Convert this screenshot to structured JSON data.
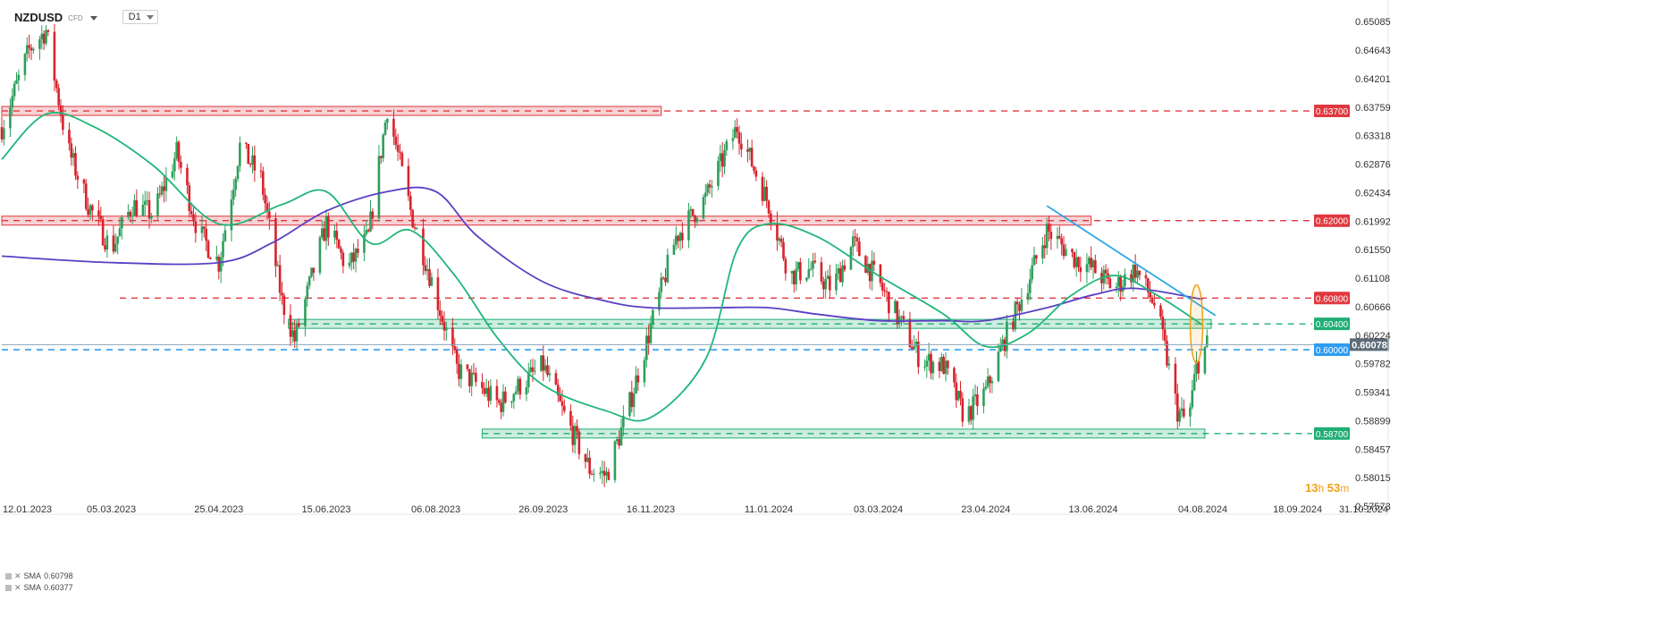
{
  "header": {
    "symbol": "NZDUSD",
    "instrument_type": "CFD",
    "timeframe": "D1"
  },
  "legend": [
    {
      "label": "SMA",
      "value": "0.60798"
    },
    {
      "label": "SMA",
      "value": "0.60377"
    }
  ],
  "timer": {
    "hours": "13",
    "hours_unit": "h",
    "minutes": "53",
    "minutes_unit": "m"
  },
  "colors": {
    "up_candle": "#2e9e5b",
    "down_candle": "#d7232c",
    "sma_fast": "#1fb67a",
    "sma_slow": "#5b3fc4",
    "resistance": "#e0383f",
    "support": "#1fae74",
    "pivot": "#2e9df2",
    "trendline": "#29a8e8",
    "highlight": "#f0a018"
  },
  "chart_data": {
    "type": "candlestick",
    "title": "",
    "xlabel": "",
    "ylabel": "",
    "ylim": [
      0.5745,
      0.6535
    ],
    "grid": false,
    "x_ticks": [
      "12.01.2023",
      "05.03.2023",
      "25.04.2023",
      "15.06.2023",
      "06.08.2023",
      "26.09.2023",
      "16.11.2023",
      "11.01.2024",
      "03.03.2024",
      "23.04.2024",
      "13.06.2024",
      "04.08.2024",
      "18.09.2024",
      "31.10.2024"
    ],
    "y_ticks": [
      "0.65085",
      "0.64643",
      "0.64201",
      "0.63759",
      "0.63318",
      "0.62876",
      "0.62434",
      "0.61992",
      "0.61550",
      "0.61108",
      "0.60666",
      "0.60224",
      "0.59782",
      "0.59341",
      "0.58899",
      "0.58457",
      "0.58015",
      "0.57573"
    ],
    "current_price": {
      "label": "0.60078",
      "value": 0.60078
    },
    "levels": [
      {
        "label": "0.63700",
        "value": 0.637,
        "kind": "resistance"
      },
      {
        "label": "0.62000",
        "value": 0.62,
        "kind": "resistance"
      },
      {
        "label": "0.60800",
        "value": 0.608,
        "kind": "resistance"
      },
      {
        "label": "0.60400",
        "value": 0.604,
        "kind": "support"
      },
      {
        "label": "0.60000",
        "value": 0.6,
        "kind": "pivot"
      },
      {
        "label": "0.58700",
        "value": 0.587,
        "kind": "support"
      }
    ],
    "zones": [
      {
        "kind": "resistance",
        "center": 0.637,
        "x_start": "12.01.2023",
        "x_end": "21.11.2023"
      },
      {
        "kind": "resistance",
        "center": 0.62,
        "x_start": "12.01.2023",
        "x_end": "12.06.2024"
      },
      {
        "kind": "support",
        "center": 0.604,
        "x_start": "28.05.2023",
        "x_end": "08.08.2024"
      },
      {
        "kind": "support",
        "center": 0.587,
        "x_start": "28.08.2023",
        "x_end": "05.08.2024"
      }
    ],
    "trendline": {
      "from": {
        "date": "22.05.2024",
        "value": 0.6223
      },
      "to": {
        "date": "10.08.2024",
        "value": 0.6053
      }
    },
    "highlight": {
      "date": "01.08.2024",
      "low": 0.5985,
      "high": 0.6095
    },
    "close_path": [
      {
        "date": "12.01.2023",
        "value": 0.6345
      },
      {
        "date": "25.01.2023",
        "value": 0.6465
      },
      {
        "date": "02.02.2023",
        "value": 0.6495
      },
      {
        "date": "12.02.2023",
        "value": 0.6315
      },
      {
        "date": "22.02.2023",
        "value": 0.6225
      },
      {
        "date": "05.03.2023",
        "value": 0.6155
      },
      {
        "date": "15.03.2023",
        "value": 0.6225
      },
      {
        "date": "25.03.2023",
        "value": 0.621
      },
      {
        "date": "05.04.2023",
        "value": 0.6305
      },
      {
        "date": "15.04.2023",
        "value": 0.6185
      },
      {
        "date": "25.04.2023",
        "value": 0.6135
      },
      {
        "date": "05.05.2023",
        "value": 0.6315
      },
      {
        "date": "15.05.2023",
        "value": 0.6265
      },
      {
        "date": "25.05.2023",
        "value": 0.6075
      },
      {
        "date": "31.05.2023",
        "value": 0.6015
      },
      {
        "date": "15.06.2023",
        "value": 0.6195
      },
      {
        "date": "25.06.2023",
        "value": 0.6125
      },
      {
        "date": "05.07.2023",
        "value": 0.6175
      },
      {
        "date": "14.07.2023",
        "value": 0.6375
      },
      {
        "date": "25.07.2023",
        "value": 0.6215
      },
      {
        "date": "06.08.2023",
        "value": 0.6085
      },
      {
        "date": "16.08.2023",
        "value": 0.597
      },
      {
        "date": "26.08.2023",
        "value": 0.5945
      },
      {
        "date": "05.09.2023",
        "value": 0.5915
      },
      {
        "date": "15.09.2023",
        "value": 0.5945
      },
      {
        "date": "26.09.2023",
        "value": 0.5975
      },
      {
        "date": "05.10.2023",
        "value": 0.5905
      },
      {
        "date": "18.10.2023",
        "value": 0.5815
      },
      {
        "date": "26.10.2023",
        "value": 0.5805
      },
      {
        "date": "05.11.2023",
        "value": 0.5905
      },
      {
        "date": "16.11.2023",
        "value": 0.6035
      },
      {
        "date": "28.11.2023",
        "value": 0.6175
      },
      {
        "date": "12.12.2023",
        "value": 0.6235
      },
      {
        "date": "27.12.2023",
        "value": 0.6345
      },
      {
        "date": "11.01.2024",
        "value": 0.6225
      },
      {
        "date": "21.01.2024",
        "value": 0.6115
      },
      {
        "date": "31.01.2024",
        "value": 0.6125
      },
      {
        "date": "10.02.2024",
        "value": 0.6095
      },
      {
        "date": "20.02.2024",
        "value": 0.6165
      },
      {
        "date": "03.03.2024",
        "value": 0.6105
      },
      {
        "date": "13.03.2024",
        "value": 0.6045
      },
      {
        "date": "23.03.2024",
        "value": 0.5985
      },
      {
        "date": "03.04.2024",
        "value": 0.5975
      },
      {
        "date": "13.04.2024",
        "value": 0.5895
      },
      {
        "date": "23.04.2024",
        "value": 0.5935
      },
      {
        "date": "03.05.2024",
        "value": 0.6025
      },
      {
        "date": "13.05.2024",
        "value": 0.6105
      },
      {
        "date": "22.05.2024",
        "value": 0.6185
      },
      {
        "date": "03.06.2024",
        "value": 0.6145
      },
      {
        "date": "13.06.2024",
        "value": 0.6125
      },
      {
        "date": "23.06.2024",
        "value": 0.6095
      },
      {
        "date": "03.07.2024",
        "value": 0.6125
      },
      {
        "date": "13.07.2024",
        "value": 0.6065
      },
      {
        "date": "23.07.2024",
        "value": 0.5905
      },
      {
        "date": "28.07.2024",
        "value": 0.5885
      },
      {
        "date": "01.08.2024",
        "value": 0.5975
      },
      {
        "date": "06.08.2024",
        "value": 0.6008
      }
    ],
    "series": [
      {
        "value_label": "0.60798",
        "smoothing": "slow",
        "path": [
          {
            "date": "12.01.2023",
            "value": 0.6145
          },
          {
            "date": "05.03.2023",
            "value": 0.6135
          },
          {
            "date": "25.04.2023",
            "value": 0.6135
          },
          {
            "date": "20.05.2023",
            "value": 0.6165
          },
          {
            "date": "15.06.2023",
            "value": 0.6215
          },
          {
            "date": "14.07.2023",
            "value": 0.6245
          },
          {
            "date": "06.08.2023",
            "value": 0.6245
          },
          {
            "date": "26.08.2023",
            "value": 0.6175
          },
          {
            "date": "26.09.2023",
            "value": 0.6105
          },
          {
            "date": "26.10.2023",
            "value": 0.6075
          },
          {
            "date": "16.11.2023",
            "value": 0.6065
          },
          {
            "date": "16.12.2023",
            "value": 0.6065
          },
          {
            "date": "11.01.2024",
            "value": 0.6065
          },
          {
            "date": "03.02.2024",
            "value": 0.6055
          },
          {
            "date": "03.03.2024",
            "value": 0.6045
          },
          {
            "date": "03.04.2024",
            "value": 0.6045
          },
          {
            "date": "23.04.2024",
            "value": 0.6045
          },
          {
            "date": "22.05.2024",
            "value": 0.6065
          },
          {
            "date": "13.06.2024",
            "value": 0.6085
          },
          {
            "date": "03.07.2024",
            "value": 0.6095
          },
          {
            "date": "04.08.2024",
            "value": 0.6078
          }
        ]
      },
      {
        "value_label": "0.60377",
        "smoothing": "fast",
        "path": [
          {
            "date": "12.01.2023",
            "value": 0.6295
          },
          {
            "date": "02.02.2023",
            "value": 0.6365
          },
          {
            "date": "25.02.2023",
            "value": 0.6345
          },
          {
            "date": "25.03.2023",
            "value": 0.6285
          },
          {
            "date": "25.04.2023",
            "value": 0.6195
          },
          {
            "date": "25.05.2023",
            "value": 0.6225
          },
          {
            "date": "15.06.2023",
            "value": 0.6245
          },
          {
            "date": "06.07.2023",
            "value": 0.6165
          },
          {
            "date": "25.07.2023",
            "value": 0.6185
          },
          {
            "date": "15.08.2023",
            "value": 0.6115
          },
          {
            "date": "05.09.2023",
            "value": 0.6015
          },
          {
            "date": "26.09.2023",
            "value": 0.5945
          },
          {
            "date": "26.10.2023",
            "value": 0.5905
          },
          {
            "date": "16.11.2023",
            "value": 0.5895
          },
          {
            "date": "12.12.2023",
            "value": 0.5985
          },
          {
            "date": "27.12.2023",
            "value": 0.6155
          },
          {
            "date": "11.01.2024",
            "value": 0.6195
          },
          {
            "date": "03.02.2024",
            "value": 0.6175
          },
          {
            "date": "03.03.2024",
            "value": 0.6115
          },
          {
            "date": "03.04.2024",
            "value": 0.6055
          },
          {
            "date": "23.04.2024",
            "value": 0.6005
          },
          {
            "date": "13.05.2024",
            "value": 0.6025
          },
          {
            "date": "03.06.2024",
            "value": 0.6085
          },
          {
            "date": "23.06.2024",
            "value": 0.6115
          },
          {
            "date": "13.07.2024",
            "value": 0.6085
          },
          {
            "date": "04.08.2024",
            "value": 0.6038
          }
        ]
      }
    ]
  }
}
